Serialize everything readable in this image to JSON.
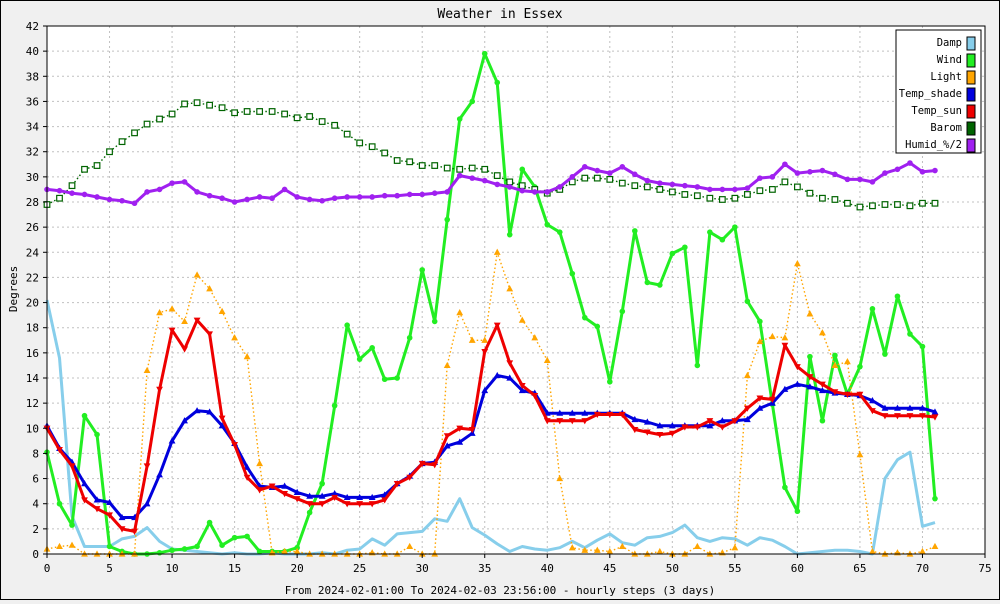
{
  "chart_data": {
    "type": "line",
    "title": "Weather in Essex",
    "xlabel": "From 2024-02-01:00 To 2024-02-03 23:56:00 - hourly steps (3 days)",
    "ylabel": "Degrees",
    "xlim": [
      0,
      75
    ],
    "ylim": [
      0,
      42
    ],
    "x_ticks": [
      0,
      5,
      10,
      15,
      20,
      25,
      30,
      35,
      40,
      45,
      50,
      55,
      60,
      65,
      70,
      75
    ],
    "y_ticks": [
      0,
      2,
      4,
      6,
      8,
      10,
      12,
      14,
      16,
      18,
      20,
      22,
      24,
      26,
      28,
      30,
      32,
      34,
      36,
      38,
      40,
      42
    ],
    "grid": true,
    "legend_position": "top-right",
    "series": [
      {
        "name": "Damp",
        "color": "#87ceeb",
        "style": "solid",
        "marker": "none",
        "values": [
          20.2,
          15.6,
          3.0,
          0.6,
          0.6,
          0.6,
          1.2,
          1.4,
          2.1,
          1.0,
          0.4,
          0.3,
          0.2,
          0.1,
          0.0,
          0.1,
          0.0,
          0.0,
          0.1,
          0.0,
          0.0,
          0.0,
          0.1,
          0.0,
          0.3,
          0.4,
          1.2,
          0.7,
          1.6,
          1.7,
          1.8,
          2.8,
          2.6,
          4.4,
          2.1,
          1.5,
          0.8,
          0.2,
          0.6,
          0.4,
          0.3,
          0.5,
          1.0,
          0.5,
          1.1,
          1.6,
          0.9,
          0.7,
          1.3,
          1.4,
          1.7,
          2.3,
          1.3,
          1.0,
          1.3,
          1.2,
          0.7,
          1.3,
          1.1,
          0.6,
          0.0,
          0.1,
          0.2,
          0.3,
          0.3,
          0.2,
          0.0,
          6.0,
          7.5,
          8.1,
          2.2,
          2.5
        ]
      },
      {
        "name": "Wind",
        "color": "#22ee22",
        "style": "solid",
        "marker": "circle",
        "values": [
          8.1,
          4.0,
          2.3,
          11.0,
          9.5,
          0.6,
          0.2,
          0.0,
          0.0,
          0.1,
          0.3,
          0.4,
          0.6,
          2.5,
          0.7,
          1.3,
          1.4,
          0.2,
          0.2,
          0.2,
          0.5,
          3.3,
          5.6,
          11.8,
          18.2,
          15.5,
          16.4,
          13.9,
          14.0,
          17.2,
          22.6,
          18.5,
          26.6,
          34.6,
          36.0,
          39.8,
          37.5,
          25.4,
          30.6,
          29.2,
          26.2,
          25.6,
          22.3,
          18.8,
          18.1,
          13.7,
          19.3,
          25.7,
          21.6,
          21.4,
          23.9,
          24.4,
          15.0,
          25.6,
          25.0,
          26.0,
          20.1,
          18.5,
          11.9,
          5.3,
          3.4,
          15.7,
          10.6,
          15.8,
          12.7,
          14.9,
          19.5,
          15.9,
          20.5,
          17.5,
          16.5,
          4.4
        ]
      },
      {
        "name": "Light",
        "color": "#ffa500",
        "style": "dotted",
        "marker": "triangle",
        "values": [
          0.4,
          0.6,
          0.7,
          0.0,
          0.0,
          0.0,
          0.0,
          0.0,
          14.6,
          19.2,
          19.5,
          18.5,
          22.2,
          21.1,
          19.3,
          17.2,
          15.7,
          7.2,
          0.1,
          0.2,
          0.2,
          0.0,
          0.0,
          0.0,
          0.0,
          0.0,
          0.1,
          0.0,
          0.0,
          0.6,
          0.0,
          0.0,
          15.0,
          19.2,
          17.0,
          17.0,
          24.0,
          21.1,
          18.6,
          17.2,
          15.4,
          6.0,
          0.5,
          0.3,
          0.3,
          0.2,
          0.6,
          0.0,
          0.0,
          0.2,
          0.0,
          0.0,
          0.6,
          0.0,
          0.1,
          0.5,
          14.2,
          16.9,
          17.3,
          17.2,
          23.1,
          19.1,
          17.6,
          15.0,
          15.3,
          7.9,
          0.2,
          0.0,
          0.1,
          0.0,
          0.2,
          0.6
        ]
      },
      {
        "name": "Temp_shade",
        "color": "#0000dd",
        "style": "solid",
        "marker": "triangle",
        "values": [
          10.2,
          8.4,
          7.3,
          5.6,
          4.3,
          4.1,
          2.9,
          2.9,
          4.0,
          6.3,
          9.0,
          10.6,
          11.4,
          11.3,
          10.2,
          8.8,
          6.9,
          5.4,
          5.3,
          5.4,
          4.9,
          4.6,
          4.6,
          4.8,
          4.5,
          4.5,
          4.5,
          4.7,
          5.6,
          6.2,
          7.2,
          7.3,
          8.6,
          8.9,
          9.6,
          13.0,
          14.2,
          14.0,
          13.0,
          12.8,
          11.2,
          11.2,
          11.2,
          11.2,
          11.2,
          11.2,
          11.2,
          10.7,
          10.5,
          10.2,
          10.2,
          10.2,
          10.2,
          10.2,
          10.6,
          10.6,
          10.7,
          11.6,
          12.0,
          13.1,
          13.5,
          13.3,
          13.0,
          12.8,
          12.7,
          12.6,
          12.2,
          11.6,
          11.6,
          11.6,
          11.6,
          11.3
        ]
      },
      {
        "name": "Temp_sun",
        "color": "#ee0000",
        "style": "solid",
        "marker": "triangle-down",
        "values": [
          10.0,
          8.3,
          7.0,
          4.3,
          3.6,
          3.1,
          2.0,
          1.8,
          7.0,
          13.1,
          17.8,
          16.3,
          18.6,
          17.5,
          10.8,
          8.7,
          6.1,
          5.1,
          5.4,
          4.8,
          4.4,
          4.0,
          4.0,
          4.5,
          4.0,
          4.0,
          4.0,
          4.3,
          5.6,
          6.1,
          7.2,
          7.1,
          9.4,
          10.0,
          9.9,
          16.1,
          18.2,
          15.2,
          13.4,
          12.6,
          10.6,
          10.6,
          10.6,
          10.6,
          11.1,
          11.1,
          11.1,
          9.9,
          9.7,
          9.5,
          9.6,
          10.1,
          10.1,
          10.6,
          10.1,
          10.6,
          11.6,
          12.4,
          12.3,
          16.6,
          14.9,
          14.1,
          13.5,
          12.9,
          12.7,
          12.7,
          11.4,
          11.0,
          11.0,
          11.0,
          11.0,
          10.9
        ]
      },
      {
        "name": "Barom",
        "color": "#006400",
        "style": "dotted",
        "marker": "square",
        "values": [
          27.8,
          28.3,
          29.3,
          30.6,
          30.9,
          32.0,
          32.8,
          33.5,
          34.2,
          34.6,
          35.0,
          35.8,
          35.9,
          35.7,
          35.5,
          35.1,
          35.2,
          35.2,
          35.2,
          35.0,
          34.7,
          34.8,
          34.4,
          34.1,
          33.4,
          32.7,
          32.4,
          31.9,
          31.3,
          31.2,
          30.9,
          30.9,
          30.7,
          30.6,
          30.7,
          30.6,
          30.1,
          29.6,
          29.3,
          29.0,
          28.7,
          29.0,
          29.6,
          29.9,
          29.9,
          29.8,
          29.5,
          29.3,
          29.2,
          29.0,
          28.8,
          28.6,
          28.5,
          28.3,
          28.2,
          28.3,
          28.6,
          28.9,
          29.0,
          29.6,
          29.2,
          28.7,
          28.3,
          28.2,
          27.9,
          27.6,
          27.7,
          27.8,
          27.8,
          27.7,
          27.9,
          27.9
        ]
      },
      {
        "name": "Humid_%/2",
        "color": "#a020f0",
        "style": "solid",
        "marker": "circle",
        "values": [
          29.0,
          28.9,
          28.7,
          28.6,
          28.4,
          28.2,
          28.1,
          27.9,
          28.8,
          29.0,
          29.5,
          29.6,
          28.8,
          28.5,
          28.3,
          28.0,
          28.2,
          28.4,
          28.3,
          29.0,
          28.4,
          28.2,
          28.1,
          28.3,
          28.4,
          28.4,
          28.4,
          28.5,
          28.5,
          28.6,
          28.6,
          28.7,
          28.8,
          30.1,
          29.9,
          29.7,
          29.4,
          29.2,
          28.9,
          28.8,
          28.8,
          29.2,
          30.0,
          30.8,
          30.5,
          30.3,
          30.8,
          30.2,
          29.7,
          29.5,
          29.4,
          29.3,
          29.2,
          29.0,
          29.0,
          29.0,
          29.1,
          29.9,
          30.0,
          31.0,
          30.3,
          30.4,
          30.5,
          30.2,
          29.8,
          29.8,
          29.6,
          30.3,
          30.6,
          31.1,
          30.4,
          30.5
        ]
      }
    ]
  }
}
